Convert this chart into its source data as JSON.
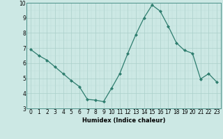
{
  "x": [
    0,
    1,
    2,
    3,
    4,
    5,
    6,
    7,
    8,
    9,
    10,
    11,
    12,
    13,
    14,
    15,
    16,
    17,
    18,
    19,
    20,
    21,
    22,
    23
  ],
  "y": [
    6.9,
    6.5,
    6.2,
    5.75,
    5.3,
    4.85,
    4.45,
    3.6,
    3.55,
    3.45,
    4.35,
    5.3,
    6.65,
    7.9,
    9.0,
    9.85,
    9.45,
    8.45,
    7.35,
    6.85,
    6.65,
    4.95,
    5.3,
    4.75
  ],
  "line_color": "#2e7d6e",
  "bg_color": "#cce8e4",
  "major_grid_color": "#aacfca",
  "minor_grid_color": "#bbddd9",
  "xlabel": "Humidex (Indice chaleur)",
  "ylim": [
    3,
    10
  ],
  "xlim": [
    -0.5,
    23.5
  ],
  "yticks": [
    3,
    4,
    5,
    6,
    7,
    8,
    9,
    10
  ],
  "xticks": [
    0,
    1,
    2,
    3,
    4,
    5,
    6,
    7,
    8,
    9,
    10,
    11,
    12,
    13,
    14,
    15,
    16,
    17,
    18,
    19,
    20,
    21,
    22,
    23
  ],
  "xlabel_fontsize": 6.0,
  "tick_fontsize": 5.5,
  "marker": "D",
  "marker_size": 2.0,
  "linewidth": 0.9
}
